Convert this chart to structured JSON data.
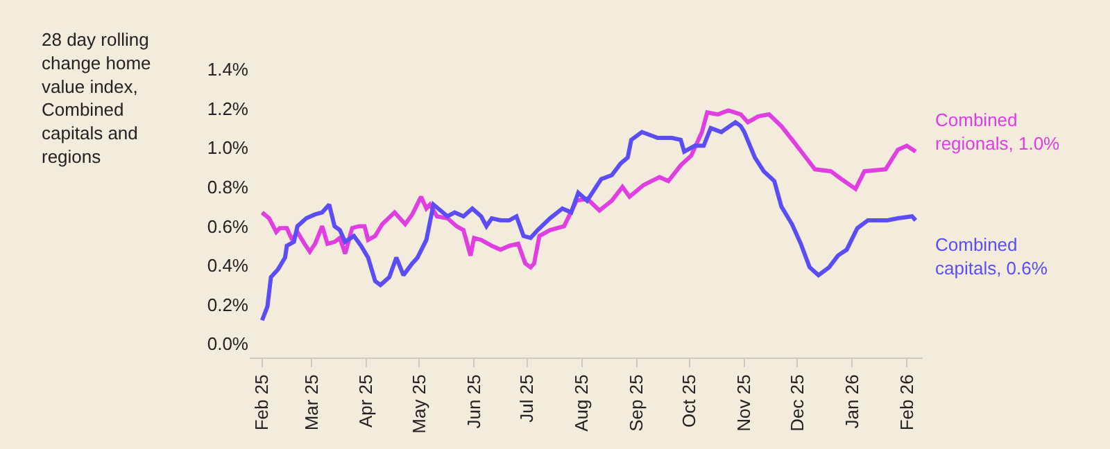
{
  "chart_data": {
    "type": "line",
    "ylabel": "28 day rolling change home value index, Combined capitals and regions",
    "xlim": [
      "2025-01-25",
      "2026-02-10"
    ],
    "xticks": [
      {
        "value": "2025-02-01",
        "label": "Feb 25"
      },
      {
        "value": "2025-03-01",
        "label": "Mar 25"
      },
      {
        "value": "2025-04-01",
        "label": "Apr 25"
      },
      {
        "value": "2025-05-01",
        "label": "May 25"
      },
      {
        "value": "2025-06-01",
        "label": "Jun 25"
      },
      {
        "value": "2025-07-01",
        "label": "Jul 25"
      },
      {
        "value": "2025-08-01",
        "label": "Aug 25"
      },
      {
        "value": "2025-09-01",
        "label": "Sep 25"
      },
      {
        "value": "2025-10-01",
        "label": "Oct 25"
      },
      {
        "value": "2025-11-01",
        "label": "Nov 25"
      },
      {
        "value": "2025-12-01",
        "label": "Dec 25"
      },
      {
        "value": "2026-01-01",
        "label": "Jan 26"
      },
      {
        "value": "2026-02-01",
        "label": "Feb 26"
      }
    ],
    "ylim": [
      -0.07,
      1.4
    ],
    "yticks": [
      {
        "value": 0,
        "label": "0.0%"
      },
      {
        "value": 0.2,
        "label": "0.2%"
      },
      {
        "value": 0.4,
        "label": "0.4%"
      },
      {
        "value": 0.6,
        "label": "0.6%"
      },
      {
        "value": 0.8,
        "label": "0.8%"
      },
      {
        "value": 1.0,
        "label": "1.0%"
      },
      {
        "value": 1.2,
        "label": "1.2%"
      },
      {
        "value": 1.4,
        "label": "1.4%"
      }
    ],
    "grid": false,
    "legend": false,
    "marker": "none",
    "line_style": "solid",
    "series": [
      {
        "name": "Combined regionals, 1.0%",
        "color": "#e03ee0",
        "x": [
          "2025-02-01",
          "2025-02-05",
          "2025-02-09",
          "2025-02-11",
          "2025-02-15",
          "2025-02-18",
          "2025-02-21",
          "2025-02-25",
          "2025-02-28",
          "2025-03-03",
          "2025-03-07",
          "2025-03-10",
          "2025-03-14",
          "2025-03-17",
          "2025-03-20",
          "2025-03-24",
          "2025-03-28",
          "2025-03-31",
          "2025-04-02",
          "2025-04-06",
          "2025-04-10",
          "2025-04-17",
          "2025-04-20",
          "2025-04-23",
          "2025-04-27",
          "2025-05-02",
          "2025-05-05",
          "2025-05-07",
          "2025-05-11",
          "2025-05-17",
          "2025-05-22",
          "2025-05-26",
          "2025-05-30",
          "2025-06-01",
          "2025-06-05",
          "2025-06-11",
          "2025-06-16",
          "2025-06-21",
          "2025-06-26",
          "2025-06-30",
          "2025-07-03",
          "2025-07-05",
          "2025-07-08",
          "2025-07-14",
          "2025-07-22",
          "2025-07-29",
          "2025-08-04",
          "2025-08-11",
          "2025-08-18",
          "2025-08-24",
          "2025-08-28",
          "2025-09-05",
          "2025-09-14",
          "2025-09-19",
          "2025-09-26",
          "2025-10-02",
          "2025-10-08",
          "2025-10-11",
          "2025-10-17",
          "2025-10-23",
          "2025-10-30",
          "2025-11-03",
          "2025-11-09",
          "2025-11-15",
          "2025-11-22",
          "2025-11-29",
          "2025-12-05",
          "2025-12-11",
          "2025-12-20",
          "2025-12-26",
          "2026-01-03",
          "2026-01-08",
          "2026-01-20",
          "2026-01-27",
          "2026-02-01",
          "2026-02-06"
        ],
        "values": [
          0.67,
          0.64,
          0.57,
          0.59,
          0.59,
          0.53,
          0.57,
          0.51,
          0.47,
          0.51,
          0.6,
          0.51,
          0.52,
          0.54,
          0.46,
          0.59,
          0.6,
          0.6,
          0.53,
          0.55,
          0.61,
          0.67,
          0.64,
          0.61,
          0.66,
          0.75,
          0.69,
          0.71,
          0.65,
          0.64,
          0.6,
          0.58,
          0.45,
          0.54,
          0.53,
          0.5,
          0.48,
          0.5,
          0.51,
          0.41,
          0.39,
          0.41,
          0.55,
          0.58,
          0.6,
          0.73,
          0.74,
          0.68,
          0.73,
          0.8,
          0.75,
          0.81,
          0.85,
          0.83,
          0.91,
          0.96,
          1.08,
          1.18,
          1.17,
          1.19,
          1.17,
          1.13,
          1.16,
          1.17,
          1.11,
          1.03,
          0.96,
          0.89,
          0.88,
          0.84,
          0.79,
          0.88,
          0.89,
          0.99,
          1.01,
          0.98
        ]
      },
      {
        "name": "Combined capitals, 0.6%",
        "color": "#5b4cf5",
        "x": [
          "2025-02-01",
          "2025-02-04",
          "2025-02-06",
          "2025-02-10",
          "2025-02-14",
          "2025-02-15",
          "2025-02-19",
          "2025-02-21",
          "2025-02-26",
          "2025-03-03",
          "2025-03-07",
          "2025-03-11",
          "2025-03-14",
          "2025-03-17",
          "2025-03-20",
          "2025-03-25",
          "2025-03-29",
          "2025-04-02",
          "2025-04-06",
          "2025-04-09",
          "2025-04-14",
          "2025-04-18",
          "2025-04-22",
          "2025-04-27",
          "2025-04-30",
          "2025-05-05",
          "2025-05-09",
          "2025-05-13",
          "2025-05-17",
          "2025-05-21",
          "2025-05-26",
          "2025-05-31",
          "2025-06-05",
          "2025-06-08",
          "2025-06-11",
          "2025-06-16",
          "2025-06-21",
          "2025-06-25",
          "2025-06-29",
          "2025-07-03",
          "2025-07-07",
          "2025-07-14",
          "2025-07-21",
          "2025-07-26",
          "2025-07-30",
          "2025-08-04",
          "2025-08-12",
          "2025-08-18",
          "2025-08-23",
          "2025-08-27",
          "2025-08-29",
          "2025-09-04",
          "2025-09-13",
          "2025-09-21",
          "2025-09-26",
          "2025-09-28",
          "2025-10-04",
          "2025-10-09",
          "2025-10-13",
          "2025-10-19",
          "2025-10-27",
          "2025-10-30",
          "2025-11-01",
          "2025-11-07",
          "2025-11-12",
          "2025-11-18",
          "2025-11-22",
          "2025-11-28",
          "2025-12-03",
          "2025-12-08",
          "2025-12-13",
          "2025-12-19",
          "2025-12-24",
          "2025-12-29",
          "2026-01-04",
          "2026-01-10",
          "2026-01-21",
          "2026-01-27",
          "2026-02-04",
          "2026-02-06"
        ],
        "values": [
          0.12,
          0.19,
          0.34,
          0.38,
          0.44,
          0.5,
          0.52,
          0.6,
          0.64,
          0.66,
          0.67,
          0.71,
          0.6,
          0.58,
          0.52,
          0.55,
          0.5,
          0.44,
          0.32,
          0.3,
          0.34,
          0.44,
          0.35,
          0.41,
          0.44,
          0.53,
          0.71,
          0.68,
          0.65,
          0.67,
          0.65,
          0.69,
          0.65,
          0.6,
          0.64,
          0.63,
          0.63,
          0.65,
          0.55,
          0.54,
          0.58,
          0.64,
          0.69,
          0.67,
          0.77,
          0.73,
          0.84,
          0.86,
          0.92,
          0.95,
          1.04,
          1.08,
          1.05,
          1.05,
          1.04,
          0.98,
          1.01,
          1.01,
          1.1,
          1.08,
          1.13,
          1.11,
          1.08,
          0.95,
          0.88,
          0.83,
          0.7,
          0.61,
          0.51,
          0.39,
          0.35,
          0.39,
          0.45,
          0.48,
          0.59,
          0.63,
          0.63,
          0.64,
          0.65,
          0.63
        ]
      }
    ]
  }
}
